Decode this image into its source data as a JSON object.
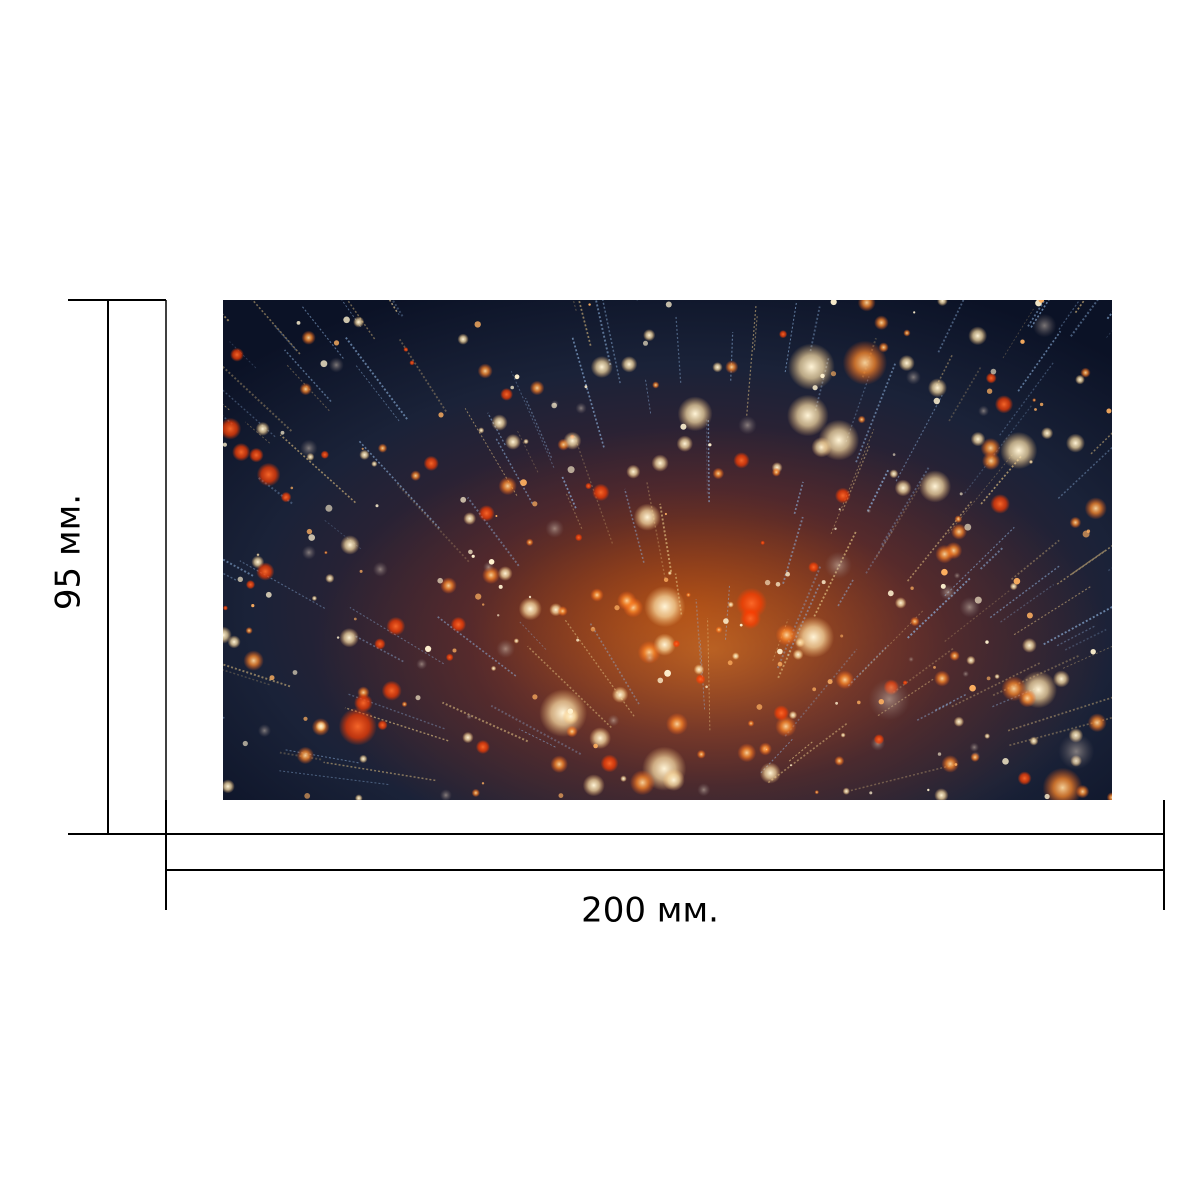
{
  "dimensions": {
    "width_label": "200 мм.",
    "height_label": "95 мм."
  },
  "artwork": {
    "palette": {
      "background_dark": "#0b1226",
      "background_mid": "#1a2238",
      "glow_warm": "#ff7a1a",
      "glow_deep": "#ff3d00",
      "glow_light": "#ffe2a8",
      "streak_blue": "#8fb4e0"
    }
  },
  "colors": {
    "line": "#000000",
    "page": "#ffffff"
  }
}
